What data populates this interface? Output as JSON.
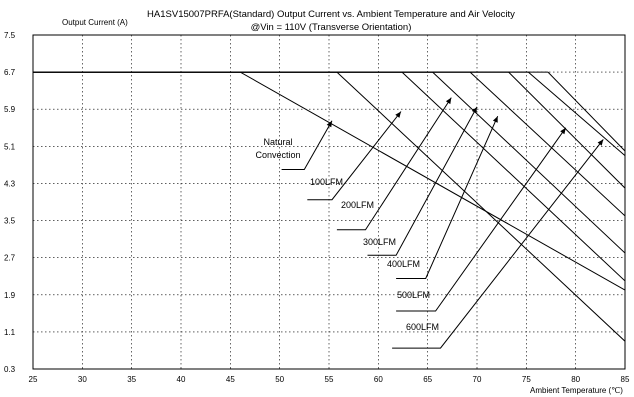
{
  "chart_data": {
    "type": "line",
    "title": "HA1SV15007PRFA(Standard)  Output Current vs. Ambient Temperature and Air Velocity",
    "subtitle": "@Vin = 110V (Transverse Orientation)",
    "ylabel": "Output Current (A)",
    "xlabel": "Ambient Temperature (℃)",
    "xlim": [
      25,
      85
    ],
    "ylim": [
      0.3,
      7.5
    ],
    "x_ticks": [
      "25",
      "30",
      "35",
      "40",
      "45",
      "50",
      "55",
      "60",
      "65",
      "70",
      "75",
      "80",
      "85"
    ],
    "y_ticks": [
      "7.5",
      "6.7",
      "5.9",
      "5.1",
      "4.3",
      "3.5",
      "2.7",
      "1.9",
      "1.1",
      "0.3"
    ],
    "grid": true,
    "series": [
      {
        "name": "Natural Convection",
        "x": [
          25,
          46,
          85
        ],
        "y": [
          6.7,
          6.7,
          2.0
        ]
      },
      {
        "name": "100LFM",
        "x": [
          25,
          55.8,
          85
        ],
        "y": [
          6.7,
          6.7,
          0.9
        ]
      },
      {
        "name": "200LFM",
        "x": [
          25,
          62.4,
          85
        ],
        "y": [
          6.7,
          6.7,
          2.2
        ]
      },
      {
        "name": "300LFM",
        "x": [
          25,
          65.5,
          85
        ],
        "y": [
          6.7,
          6.7,
          2.8
        ]
      },
      {
        "name": "400LFM",
        "x": [
          25,
          69.3,
          85
        ],
        "y": [
          6.7,
          6.7,
          3.6
        ]
      },
      {
        "name": "500LFM",
        "x": [
          25,
          73.2,
          85
        ],
        "y": [
          6.7,
          6.7,
          4.2
        ]
      },
      {
        "name": "600LFM",
        "x": [
          25,
          75.2,
          85
        ],
        "y": [
          6.7,
          6.7,
          4.9
        ]
      },
      {
        "name": "",
        "x": [
          25,
          77.2,
          85
        ],
        "y": [
          6.7,
          6.7,
          5.0
        ]
      }
    ],
    "annotations": [
      {
        "text": "Natural",
        "leader": [
          [
            50.2,
            4.6
          ],
          [
            52.5,
            4.6
          ],
          [
            55.3,
            5.65
          ]
        ]
      },
      {
        "text": "Convection"
      },
      {
        "text": "100LFM",
        "leader": [
          [
            52.8,
            3.95
          ],
          [
            55.3,
            3.95
          ],
          [
            62.3,
            5.85
          ]
        ]
      },
      {
        "text": "200LFM",
        "leader": [
          [
            55.8,
            3.3
          ],
          [
            58.7,
            3.3
          ],
          [
            67.4,
            6.15
          ]
        ]
      },
      {
        "text": "300LFM",
        "leader": [
          [
            58.9,
            2.75
          ],
          [
            61.8,
            2.75
          ],
          [
            70.0,
            5.95
          ]
        ]
      },
      {
        "text": "400LFM",
        "leader": [
          [
            61.8,
            2.25
          ],
          [
            64.8,
            2.25
          ],
          [
            72.1,
            5.75
          ]
        ]
      },
      {
        "text": "500LFM",
        "leader": [
          [
            61.8,
            1.55
          ],
          [
            65.8,
            1.55
          ],
          [
            79.0,
            5.5
          ]
        ]
      },
      {
        "text": "600LFM",
        "leader": [
          [
            61.4,
            0.75
          ],
          [
            66.3,
            0.75
          ],
          [
            82.8,
            5.25
          ]
        ]
      }
    ]
  }
}
